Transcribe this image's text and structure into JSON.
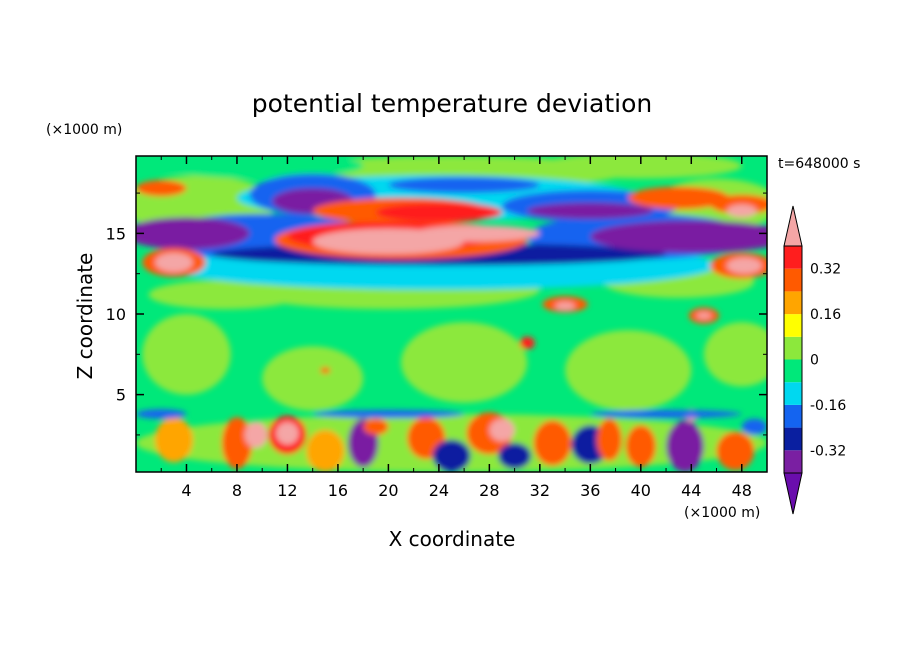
{
  "chart_data": {
    "type": "heatmap",
    "title": "potential temperature deviation",
    "xlabel": "X coordinate",
    "ylabel": "Z coordinate",
    "x_unit": "(×1000 m)",
    "y_unit": "(×1000 m)",
    "time_label": "t=648000 s",
    "xlim": [
      0,
      50
    ],
    "ylim": [
      0.2,
      19.8
    ],
    "x_ticks": [
      4,
      8,
      12,
      16,
      20,
      24,
      28,
      32,
      36,
      40,
      44,
      48
    ],
    "x_tick_labels": [
      "4",
      "8",
      "12",
      "16",
      "20",
      "24",
      "28",
      "32",
      "36",
      "40",
      "44",
      "48"
    ],
    "y_ticks": [
      5,
      10,
      15
    ],
    "y_tick_labels": [
      "5",
      "10",
      "15"
    ],
    "colorbar": {
      "levels": [
        -0.4,
        -0.32,
        -0.24,
        -0.16,
        -0.08,
        0,
        0.08,
        0.16,
        0.24,
        0.32,
        0.4
      ],
      "labeled_levels": [
        0.32,
        0.16,
        0,
        -0.16,
        -0.32
      ],
      "labels": [
        "0.32",
        "0.16",
        "0",
        "-0.16",
        "-0.32"
      ],
      "colors": [
        "#6a0dad",
        "#7a1fa2",
        "#0a1fa0",
        "#1464f0",
        "#00d8f0",
        "#00e87a",
        "#8ce83c",
        "#ffff00",
        "#ffa500",
        "#ff5a00",
        "#ff1e1e",
        "#f4a6a6"
      ]
    },
    "grid": false,
    "features": [
      {
        "x": 24,
        "z": 14.6,
        "value": 0.45
      },
      {
        "x": 22,
        "z": 13.7,
        "value": -0.35
      },
      {
        "x": 24,
        "z": 16.5,
        "value": 0.35
      },
      {
        "x": 14,
        "z": 16.8,
        "value": -0.38
      },
      {
        "x": 3,
        "z": 15.0,
        "value": -0.36
      },
      {
        "x": 46,
        "z": 14.8,
        "value": -0.36
      },
      {
        "x": 3,
        "z": 13.2,
        "value": 0.42
      },
      {
        "x": 48,
        "z": 13.0,
        "value": 0.42
      },
      {
        "x": 36,
        "z": 16.4,
        "value": -0.33
      },
      {
        "x": 42,
        "z": 17.2,
        "value": 0.3
      },
      {
        "x": 48,
        "z": 16.4,
        "value": 0.42
      },
      {
        "x": 2,
        "z": 17.8,
        "value": 0.3
      },
      {
        "x": 34,
        "z": 10.5,
        "value": 0.35
      },
      {
        "x": 45,
        "z": 9.9,
        "value": 0.38
      },
      {
        "x": 31,
        "z": 8.2,
        "value": 0.33
      },
      {
        "x": 9,
        "z": 2.5,
        "value": 0.45
      },
      {
        "x": 12,
        "z": 2.5,
        "value": 0.42
      },
      {
        "x": 18,
        "z": 2.0,
        "value": -0.4
      },
      {
        "x": 29,
        "z": 2.8,
        "value": 0.4
      },
      {
        "x": 36.5,
        "z": 1.8,
        "value": -0.36
      },
      {
        "x": 43,
        "z": 2.0,
        "value": -0.42
      }
    ]
  }
}
